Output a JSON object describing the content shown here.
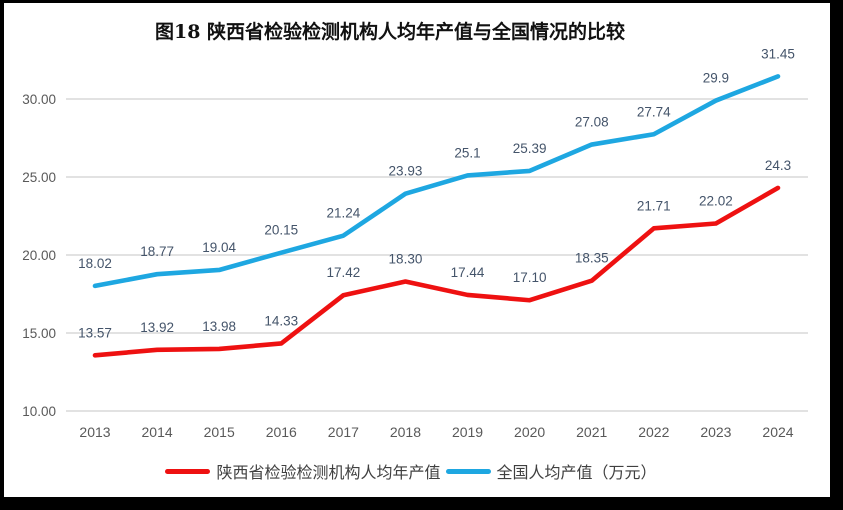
{
  "chart_data": {
    "type": "line",
    "title": "图18 陕西省检验检测机构人均年产值与全国情况的比较",
    "categories": [
      "2013",
      "2014",
      "2015",
      "2016",
      "2017",
      "2018",
      "2019",
      "2020",
      "2021",
      "2022",
      "2023",
      "2024"
    ],
    "series": [
      {
        "name": "陕西省检验检测机构人均年产值",
        "color": "#EE1111",
        "values": [
          13.57,
          13.92,
          13.98,
          14.33,
          17.42,
          18.3,
          17.44,
          17.1,
          18.35,
          21.71,
          22.02,
          24.3
        ],
        "labels": [
          "13.57",
          "13.92",
          "13.98",
          "14.33",
          "17.42",
          "18.30",
          "17.44",
          "17.10",
          "18.35",
          "21.71",
          "22.02",
          "24.3"
        ]
      },
      {
        "name": "全国人均产值（万元）",
        "color": "#1EA7E1",
        "values": [
          18.02,
          18.77,
          19.04,
          20.15,
          21.24,
          23.93,
          25.1,
          25.39,
          27.08,
          27.74,
          29.9,
          31.45
        ],
        "labels": [
          "18.02",
          "18.77",
          "19.04",
          "20.15",
          "21.24",
          "23.93",
          "25.1",
          "25.39",
          "27.08",
          "27.74",
          "29.9",
          "31.45"
        ]
      }
    ],
    "y_axis": {
      "min": 10,
      "max": 32.5,
      "ticks": [
        {
          "value": 10,
          "label": "10.00"
        },
        {
          "value": 15,
          "label": "15.00"
        },
        {
          "value": 20,
          "label": "20.00"
        },
        {
          "value": 25,
          "label": "25.00"
        },
        {
          "value": 30,
          "label": "30.00"
        }
      ]
    },
    "grid": true,
    "legend_position": "bottom",
    "styles": {
      "background": "#FFFFFF",
      "frame_color": "#000000",
      "grid_color": "#D9D9D9",
      "tick_color": "#595959",
      "data_label_color": "#44546A",
      "title_color": "#111111",
      "legend_text_color": "#404040"
    }
  }
}
